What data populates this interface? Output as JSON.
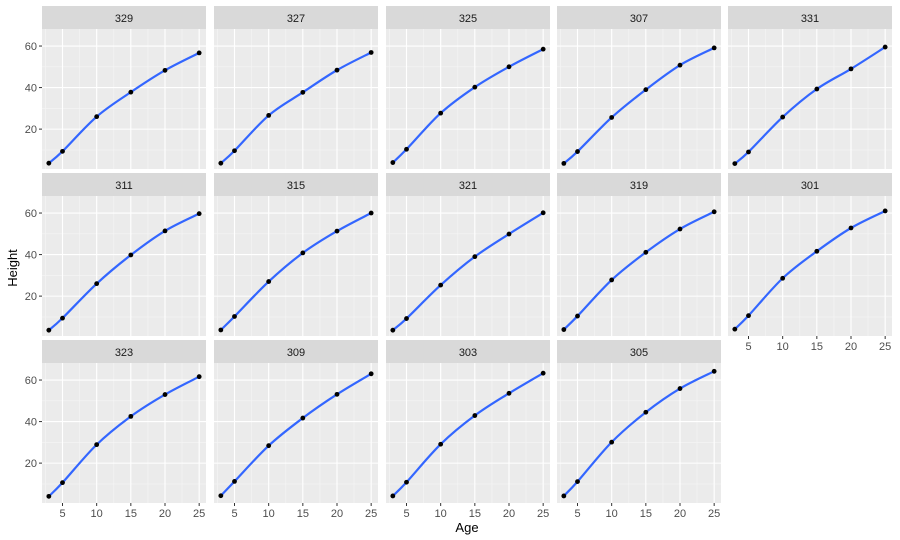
{
  "chart_data": {
    "type": "line",
    "layout": "facet_wrap",
    "xlabel": "Age",
    "ylabel": "Height",
    "x_ticks": [
      5,
      10,
      15,
      20,
      25
    ],
    "y_ticks": [
      20,
      40,
      60
    ],
    "xlim": [
      2.0,
      26.0
    ],
    "ylim": [
      0.8,
      68.2
    ],
    "x": [
      3,
      5,
      10,
      15,
      20,
      25
    ],
    "colors": {
      "line": "#3366ff",
      "points": "#000000",
      "panel": "#ebebeb",
      "strip": "#d9d9d9"
    },
    "series": [
      {
        "name": "329",
        "values": [
          3.6,
          9.3,
          26.0,
          37.8,
          48.3,
          56.7
        ]
      },
      {
        "name": "327",
        "values": [
          3.6,
          9.6,
          26.6,
          37.7,
          48.4,
          56.9
        ]
      },
      {
        "name": "325",
        "values": [
          3.9,
          10.3,
          27.7,
          40.2,
          50.0,
          58.5
        ]
      },
      {
        "name": "307",
        "values": [
          3.5,
          9.2,
          25.6,
          39.0,
          50.8,
          59.1
        ]
      },
      {
        "name": "331",
        "values": [
          3.4,
          9.0,
          25.8,
          39.3,
          49.0,
          59.5
        ]
      },
      {
        "name": "311",
        "values": [
          3.6,
          9.4,
          26.0,
          39.8,
          51.4,
          59.7
        ]
      },
      {
        "name": "315",
        "values": [
          3.7,
          10.2,
          27.0,
          40.8,
          51.3,
          60.0
        ]
      },
      {
        "name": "321",
        "values": [
          3.6,
          9.2,
          25.3,
          39.0,
          49.9,
          60.1
        ]
      },
      {
        "name": "319",
        "values": [
          3.9,
          10.4,
          27.8,
          41.1,
          52.3,
          60.6
        ]
      },
      {
        "name": "301",
        "values": [
          4.1,
          10.6,
          28.6,
          41.6,
          52.8,
          61.0
        ]
      },
      {
        "name": "323",
        "values": [
          4.0,
          10.6,
          28.9,
          42.5,
          53.0,
          61.6
        ]
      },
      {
        "name": "309",
        "values": [
          4.3,
          11.2,
          28.4,
          41.7,
          53.1,
          63.0
        ]
      },
      {
        "name": "303",
        "values": [
          4.2,
          10.8,
          29.1,
          42.9,
          53.6,
          63.3
        ]
      },
      {
        "name": "305",
        "values": [
          4.2,
          11.1,
          30.1,
          44.5,
          55.9,
          64.2
        ]
      }
    ]
  }
}
